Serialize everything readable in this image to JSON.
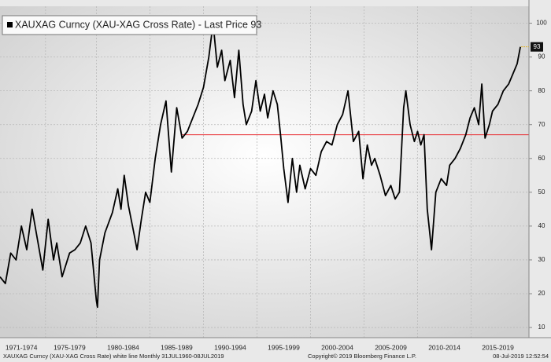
{
  "chart_data": {
    "type": "line",
    "title": "XAUXAG Curncy (XAU-XAG Cross Rate) - Last Price 93",
    "x": [
      1971.0,
      1971.5,
      1972.0,
      1972.5,
      1973.0,
      1973.5,
      1974.0,
      1974.5,
      1975.0,
      1975.5,
      1976.0,
      1976.3,
      1976.8,
      1977.5,
      1978.0,
      1978.5,
      1979.0,
      1979.5,
      1980.0,
      1980.1,
      1980.3,
      1980.8,
      1981.5,
      1982.0,
      1982.3,
      1982.6,
      1983.0,
      1983.5,
      1983.8,
      1984.2,
      1984.6,
      1985.0,
      1985.5,
      1986.0,
      1986.5,
      1987.0,
      1987.5,
      1988.0,
      1988.5,
      1989.0,
      1989.5,
      1990.0,
      1990.5,
      1990.9,
      1991.3,
      1991.7,
      1992.0,
      1992.5,
      1992.9,
      1993.3,
      1993.7,
      1994.0,
      1994.5,
      1994.9,
      1995.3,
      1995.7,
      1996.0,
      1996.5,
      1996.9,
      1997.2,
      1997.5,
      1997.9,
      1998.3,
      1998.7,
      1999.0,
      1999.5,
      2000.0,
      2000.5,
      2001.0,
      2001.5,
      2002.0,
      2002.5,
      2003.0,
      2003.5,
      2004.0,
      2004.5,
      2004.9,
      2005.3,
      2005.7,
      2006.0,
      2006.5,
      2007.0,
      2007.5,
      2007.9,
      2008.3,
      2008.7,
      2008.9,
      2009.3,
      2009.7,
      2010.0,
      2010.3,
      2010.6,
      2010.9,
      2011.3,
      2011.7,
      2012.2,
      2012.7,
      2013.0,
      2013.5,
      2014.0,
      2014.5,
      2014.9,
      2015.3,
      2015.7,
      2016.0,
      2016.3,
      2016.7,
      2017.0,
      2017.5,
      2018.0,
      2018.5,
      2018.9,
      2019.3,
      2019.6
    ],
    "series": [
      {
        "name": "XAUXAG Curncy",
        "color": "#000000",
        "values": [
          25,
          23,
          32,
          30,
          40,
          33,
          45,
          36,
          27,
          42,
          30,
          35,
          25,
          32,
          33,
          35,
          40,
          35,
          18,
          16,
          30,
          38,
          44,
          51,
          45,
          55,
          46,
          38,
          33,
          42,
          50,
          47,
          60,
          70,
          77,
          56,
          75,
          66,
          68,
          72,
          76,
          81,
          90,
          100,
          87,
          92,
          83,
          89,
          78,
          92,
          76,
          70,
          74,
          83,
          74,
          79,
          72,
          80,
          76,
          67,
          57,
          47,
          60,
          50,
          58,
          51,
          57,
          55,
          62,
          65,
          64,
          70,
          73,
          80,
          65,
          68,
          54,
          64,
          58,
          60,
          55,
          49,
          52,
          48,
          50,
          75,
          80,
          70,
          65,
          68,
          64,
          67,
          45,
          33,
          50,
          54,
          52,
          58,
          60,
          63,
          67,
          72,
          75,
          70,
          82,
          66,
          70,
          74,
          76,
          80,
          82,
          85,
          88,
          93
        ]
      }
    ],
    "last_value": 93,
    "hline": {
      "value": 67,
      "color": "#e8262b"
    },
    "xlim": [
      1971,
      2020.4
    ],
    "ylim": [
      7,
      105
    ],
    "yticks": [
      10,
      20,
      30,
      40,
      50,
      60,
      70,
      80,
      90,
      100
    ],
    "xticks": [
      {
        "value": 1973,
        "label": "1971-1974"
      },
      {
        "value": 1977.5,
        "label": "1975-1979"
      },
      {
        "value": 1982.5,
        "label": "1980-1984"
      },
      {
        "value": 1987.5,
        "label": "1985-1989"
      },
      {
        "value": 1992.5,
        "label": "1990-1994"
      },
      {
        "value": 1997.5,
        "label": "1995-1999"
      },
      {
        "value": 2002.5,
        "label": "2000-2004"
      },
      {
        "value": 2007.5,
        "label": "2005-2009"
      },
      {
        "value": 2012.5,
        "label": "2010-2014"
      },
      {
        "value": 2017.5,
        "label": "2015-2019"
      }
    ],
    "grid": true,
    "footer": {
      "left": "XAUXAG Curncy (XAU-XAG Cross Rate) white line  Monthly 31JUL1960-08JUL2019",
      "center": "Copyright© 2019 Bloomberg Finance L.P.",
      "right": "08-Jul-2019 12:52:54"
    }
  }
}
